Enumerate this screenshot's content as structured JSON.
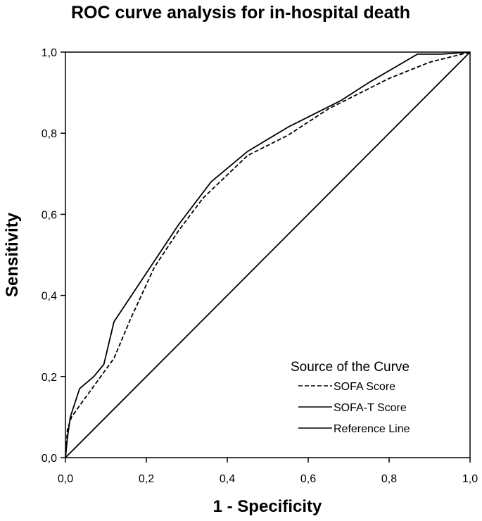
{
  "chart_data": {
    "type": "line",
    "title": "ROC curve analysis for in-hospital death",
    "xlabel": "1 - Specificity",
    "ylabel": "Sensitivity",
    "xlim": [
      0,
      1
    ],
    "ylim": [
      0,
      1
    ],
    "xticks": [
      "0,0",
      "0,2",
      "0,4",
      "0,6",
      "0,8",
      "1,0"
    ],
    "yticks": [
      "0,0",
      "0,2",
      "0,4",
      "0,6",
      "0,8",
      "1,0"
    ],
    "grid": false,
    "legend": {
      "title": "Source of the Curve",
      "placement": "bottom-right"
    },
    "series": [
      {
        "name": "SOFA Score",
        "style": "dashed",
        "color": "#000000",
        "points": [
          [
            0,
            0
          ],
          [
            0.005,
            0.07
          ],
          [
            0.015,
            0.1
          ],
          [
            0.04,
            0.135
          ],
          [
            0.08,
            0.19
          ],
          [
            0.12,
            0.245
          ],
          [
            0.16,
            0.34
          ],
          [
            0.22,
            0.47
          ],
          [
            0.28,
            0.56
          ],
          [
            0.34,
            0.64
          ],
          [
            0.45,
            0.745
          ],
          [
            0.55,
            0.795
          ],
          [
            0.65,
            0.86
          ],
          [
            0.7,
            0.885
          ],
          [
            0.8,
            0.935
          ],
          [
            0.9,
            0.975
          ],
          [
            1.0,
            1.0
          ]
        ]
      },
      {
        "name": "SOFA-T Score",
        "style": "solid",
        "color": "#000000",
        "points": [
          [
            0,
            0
          ],
          [
            0.005,
            0.05
          ],
          [
            0.012,
            0.1
          ],
          [
            0.035,
            0.17
          ],
          [
            0.07,
            0.2
          ],
          [
            0.095,
            0.23
          ],
          [
            0.12,
            0.335
          ],
          [
            0.2,
            0.455
          ],
          [
            0.28,
            0.575
          ],
          [
            0.36,
            0.68
          ],
          [
            0.45,
            0.755
          ],
          [
            0.55,
            0.815
          ],
          [
            0.68,
            0.88
          ],
          [
            0.75,
            0.925
          ],
          [
            0.87,
            0.995
          ],
          [
            0.93,
            0.995
          ],
          [
            1.0,
            1.0
          ]
        ]
      },
      {
        "name": "Reference Line",
        "style": "solid",
        "color": "#000000",
        "points": [
          [
            0,
            0
          ],
          [
            1,
            1
          ]
        ]
      }
    ]
  }
}
